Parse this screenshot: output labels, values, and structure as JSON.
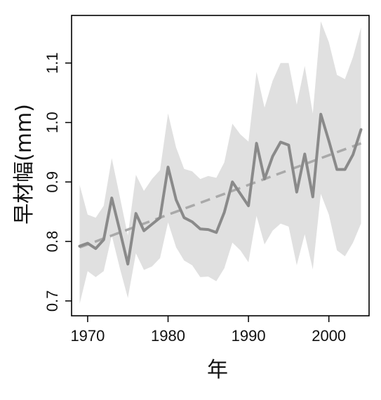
{
  "chart_data": {
    "type": "line",
    "title": "",
    "xlabel": "年",
    "ylabel": "早材幅(mm)",
    "xlim": [
      1968,
      2005
    ],
    "ylim": [
      0.675,
      1.18
    ],
    "x_ticks": [
      1970,
      1980,
      1990,
      2000
    ],
    "y_ticks": [
      0.7,
      0.8,
      0.9,
      1.0,
      1.1
    ],
    "x_tick_labels": [
      "1970",
      "1980",
      "1990",
      "2000"
    ],
    "y_tick_labels": [
      "0.7",
      "0.8",
      "0.9",
      "1.0",
      "1.1"
    ],
    "grid": false,
    "x": [
      1969,
      1970,
      1971,
      1972,
      1973,
      1974,
      1975,
      1976,
      1977,
      1978,
      1979,
      1980,
      1981,
      1982,
      1983,
      1984,
      1985,
      1986,
      1987,
      1988,
      1989,
      1990,
      1991,
      1992,
      1993,
      1994,
      1995,
      1996,
      1997,
      1998,
      1999,
      2000,
      2001,
      2002,
      2003,
      2004
    ],
    "series": [
      {
        "role": "band_upper",
        "color": "#e0e0e0",
        "values": [
          0.895,
          0.845,
          0.84,
          0.86,
          0.94,
          0.875,
          0.81,
          0.912,
          0.885,
          0.905,
          0.92,
          1.015,
          0.958,
          0.922,
          0.918,
          0.905,
          0.91,
          0.907,
          0.933,
          0.998,
          0.98,
          0.968,
          1.085,
          1.025,
          1.07,
          1.1,
          1.1,
          1.03,
          1.095,
          1.015,
          1.17,
          1.135,
          1.08,
          1.073,
          1.11,
          1.16
        ]
      },
      {
        "role": "band_lower",
        "color": "#e0e0e0",
        "values": [
          0.695,
          0.75,
          0.74,
          0.75,
          0.81,
          0.755,
          0.705,
          0.78,
          0.752,
          0.758,
          0.772,
          0.832,
          0.79,
          0.768,
          0.76,
          0.74,
          0.741,
          0.733,
          0.755,
          0.798,
          0.785,
          0.765,
          0.843,
          0.795,
          0.818,
          0.83,
          0.825,
          0.76,
          0.812,
          0.753,
          0.88,
          0.845,
          0.785,
          0.775,
          0.798,
          0.83
        ]
      },
      {
        "role": "mean",
        "color": "#8a8a8a",
        "values": [
          0.792,
          0.797,
          0.788,
          0.803,
          0.873,
          0.818,
          0.762,
          0.847,
          0.818,
          0.829,
          0.84,
          0.925,
          0.87,
          0.84,
          0.833,
          0.821,
          0.82,
          0.815,
          0.849,
          0.9,
          0.88,
          0.86,
          0.965,
          0.905,
          0.943,
          0.967,
          0.962,
          0.883,
          0.947,
          0.875,
          1.014,
          0.969,
          0.921,
          0.921,
          0.946,
          0.988
        ]
      },
      {
        "role": "trend",
        "style": "dashed",
        "color": "#a9a9a9",
        "values": [
          0.79,
          0.795,
          0.8,
          0.805,
          0.81,
          0.815,
          0.82,
          0.825,
          0.83,
          0.835,
          0.84,
          0.845,
          0.85,
          0.855,
          0.86,
          0.865,
          0.87,
          0.875,
          0.88,
          0.885,
          0.89,
          0.895,
          0.9,
          0.905,
          0.91,
          0.915,
          0.92,
          0.925,
          0.93,
          0.935,
          0.94,
          0.945,
          0.95,
          0.955,
          0.96,
          0.965
        ]
      }
    ]
  }
}
